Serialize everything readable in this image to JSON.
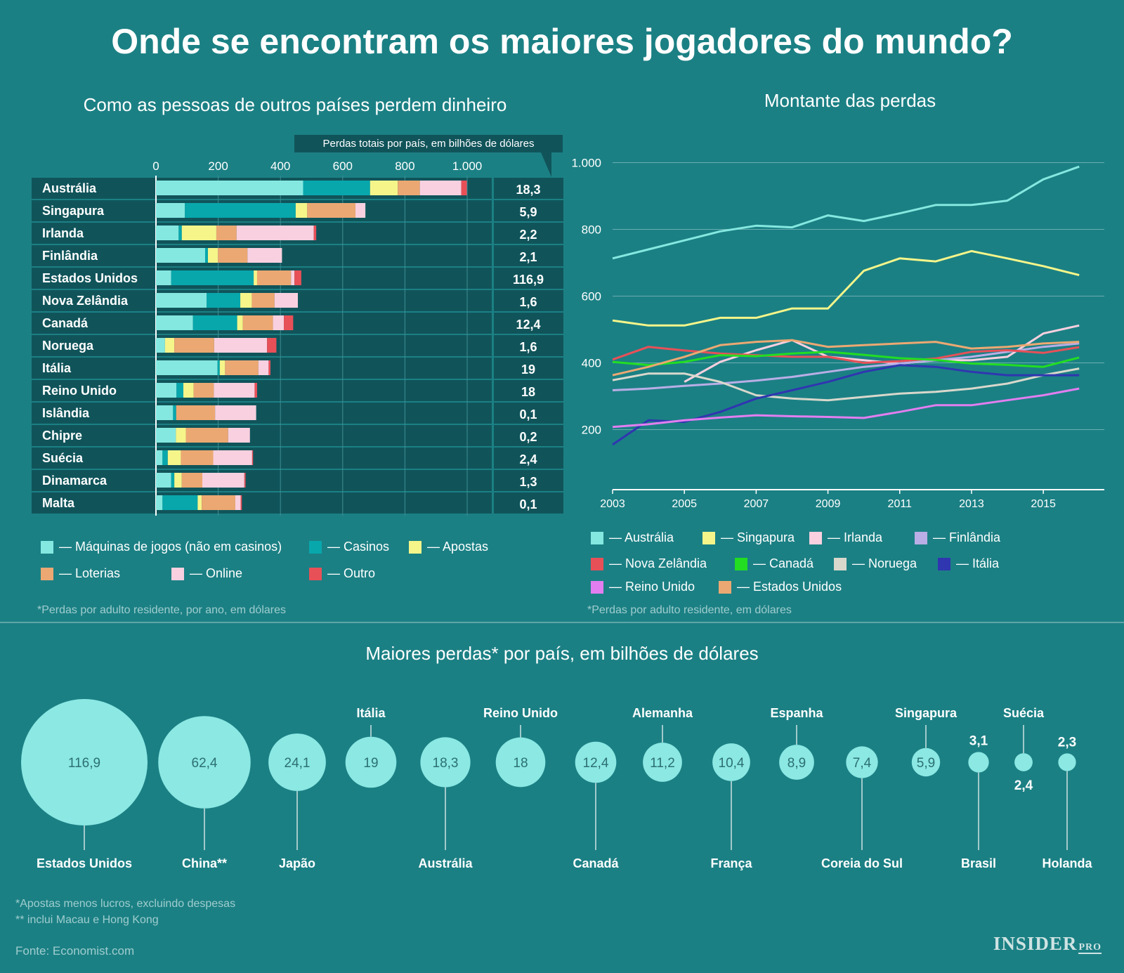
{
  "title": "Onde se encontram os maiores jogadores do mundo?",
  "colors": {
    "background": "#1b8084",
    "machines": "#85e8e0",
    "casinos": "#08a7ac",
    "bets": "#f5f58a",
    "lotteries": "#eca872",
    "online": "#f9d0df",
    "other": "#e85058",
    "bubble": "#8be8e3"
  },
  "bar_section": {
    "title": "Como as pessoas de outros países perdem dinheiro",
    "totals_note": "Perdas totais por país, em bilhões de dólares",
    "footnote": "*Perdas por adulto residente, por ano, em dólares",
    "legend": [
      {
        "label": "— Máquinas de jogos (não em casinos)",
        "color_key": "machines"
      },
      {
        "label": "— Casinos",
        "color_key": "casinos"
      },
      {
        "label": "— Apostas",
        "color_key": "bets"
      },
      {
        "label": "— Loterias",
        "color_key": "lotteries"
      },
      {
        "label": "— Online",
        "color_key": "online"
      },
      {
        "label": "— Outro",
        "color_key": "other"
      }
    ]
  },
  "line_section": {
    "title": "Montante das perdas",
    "footnote": "*Perdas por adulto residente, em dólares",
    "legend": [
      {
        "label": "— Austrália",
        "color": "#85e8e0"
      },
      {
        "label": "— Singapura",
        "color": "#f5f58a"
      },
      {
        "label": "— Irlanda",
        "color": "#f9d0df"
      },
      {
        "label": "— Finlândia",
        "color": "#b9aee6"
      },
      {
        "label": "— Nova Zelândia",
        "color": "#e85058"
      },
      {
        "label": "— Canadá",
        "color": "#22dd22"
      },
      {
        "label": "— Noruega",
        "color": "#d8d8cc"
      },
      {
        "label": "— Itália",
        "color": "#3036b0"
      },
      {
        "label": "— Reino Unido",
        "color": "#e27ef0"
      },
      {
        "label": "— Estados Unidos",
        "color": "#eca872"
      }
    ]
  },
  "bubble_section": {
    "title": "Maiores perdas* por país, em bilhões de dólares",
    "footnote1": "*Apostas menos lucros, excluindo despesas",
    "footnote2": "** inclui Macau e Hong Kong"
  },
  "source": "Fonte: Economist.com",
  "brand": {
    "main": "INSIDER",
    "sub": "PRO"
  },
  "chart_data": [
    {
      "type": "bar",
      "subtype": "stacked-horizontal",
      "title": "Como as pessoas de outros países perdem dinheiro",
      "xlim": [
        0,
        1000
      ],
      "ticks": [
        "0",
        "200",
        "400",
        "600",
        "800",
        "1.000"
      ],
      "tick_values": [
        0,
        200,
        400,
        600,
        800,
        1000
      ],
      "categories": [
        "Austrália",
        "Singapura",
        "Irlanda",
        "Finlândia",
        "Estados Unidos",
        "Nova Zelândia",
        "Canadá",
        "Noruega",
        "Itália",
        "Reino Unido",
        "Islândia",
        "Chipre",
        "Suécia",
        "Dinamarca",
        "Malta"
      ],
      "series": [
        {
          "name": "Máquinas de jogos (não em casinos)",
          "color_key": "machines",
          "values": [
            473,
            93,
            73,
            158,
            49,
            163,
            119,
            29,
            198,
            66,
            55,
            64,
            21,
            49,
            21
          ]
        },
        {
          "name": "Casinos",
          "color_key": "casinos",
          "values": [
            215,
            356,
            10,
            9,
            265,
            108,
            142,
            0,
            7,
            22,
            10,
            0,
            17,
            10,
            113
          ]
        },
        {
          "name": "Apostas",
          "color_key": "bets",
          "values": [
            89,
            37,
            111,
            32,
            11,
            37,
            18,
            30,
            17,
            33,
            0,
            32,
            42,
            24,
            13
          ]
        },
        {
          "name": "Loterias",
          "color_key": "lotteries",
          "values": [
            71,
            155,
            65,
            95,
            109,
            73,
            97,
            128,
            107,
            65,
            125,
            136,
            104,
            66,
            108
          ]
        },
        {
          "name": "Online",
          "color_key": "online",
          "values": [
            133,
            32,
            248,
            111,
            11,
            75,
            35,
            170,
            33,
            131,
            132,
            70,
            125,
            135,
            17
          ]
        },
        {
          "name": "Outro",
          "color_key": "other",
          "values": [
            18,
            0,
            8,
            0,
            22,
            0,
            30,
            30,
            6,
            8,
            0,
            0,
            3,
            4,
            4
          ]
        }
      ],
      "totals": [
        "18,3",
        "5,9",
        "2,2",
        "2,1",
        "116,9",
        "1,6",
        "12,4",
        "1,6",
        "19",
        "18",
        "0,1",
        "0,2",
        "2,4",
        "1,3",
        "0,1"
      ]
    },
    {
      "type": "line",
      "title": "Montante das perdas",
      "x": [
        2003,
        2004,
        2005,
        2006,
        2007,
        2008,
        2009,
        2010,
        2011,
        2012,
        2013,
        2014,
        2015,
        2016
      ],
      "xticks": [
        "2003",
        "2005",
        "2007",
        "2009",
        "2011",
        "2013",
        "2015"
      ],
      "xtick_values": [
        2003,
        2005,
        2007,
        2009,
        2011,
        2013,
        2015
      ],
      "xlim": [
        2003,
        2016.7
      ],
      "ylim": [
        20,
        1020
      ],
      "yticks": [
        "200",
        "400",
        "600",
        "800",
        "1.000"
      ],
      "ytick_values": [
        200,
        400,
        600,
        800,
        1000
      ],
      "series": [
        {
          "name": "Austrália",
          "color": "#85e8e0",
          "values": [
            713,
            740,
            767,
            794,
            811,
            806,
            842,
            825,
            848,
            873,
            873,
            886,
            950,
            988
          ]
        },
        {
          "name": "Singapura",
          "color": "#f5f58a",
          "values": [
            527,
            512,
            512,
            535,
            535,
            563,
            563,
            676,
            713,
            704,
            735,
            713,
            690,
            663
          ]
        },
        {
          "name": "Irlanda",
          "color": "#f9d0df",
          "values": [
            null,
            null,
            343,
            403,
            438,
            468,
            418,
            408,
            398,
            408,
            408,
            418,
            488,
            512
          ]
        },
        {
          "name": "Finlândia",
          "color": "#b9aee6",
          "values": [
            318,
            323,
            331,
            338,
            347,
            358,
            373,
            388,
            398,
            408,
            418,
            433,
            448,
            458
          ]
        },
        {
          "name": "Nova Zelândia",
          "color": "#e85058",
          "values": [
            410,
            448,
            437,
            428,
            423,
            418,
            418,
            400,
            405,
            413,
            433,
            438,
            430,
            447
          ]
        },
        {
          "name": "Canadá",
          "color": "#22dd22",
          "values": [
            403,
            393,
            403,
            423,
            420,
            428,
            433,
            424,
            414,
            409,
            398,
            394,
            388,
            416
          ]
        },
        {
          "name": "Noruega",
          "color": "#d8d8cc",
          "values": [
            348,
            368,
            368,
            343,
            303,
            293,
            288,
            298,
            308,
            313,
            323,
            338,
            363,
            383
          ]
        },
        {
          "name": "Itália",
          "color": "#3036b0",
          "values": [
            155,
            228,
            223,
            253,
            293,
            318,
            343,
            373,
            393,
            388,
            373,
            363,
            363,
            363
          ]
        },
        {
          "name": "Reino Unido",
          "color": "#e27ef0",
          "values": [
            208,
            216,
            228,
            236,
            243,
            240,
            238,
            235,
            253,
            273,
            273,
            288,
            303,
            323
          ]
        },
        {
          "name": "Estados Unidos",
          "color": "#eca872",
          "values": [
            363,
            388,
            418,
            453,
            463,
            468,
            448,
            453,
            458,
            463,
            443,
            448,
            458,
            463
          ]
        }
      ]
    },
    {
      "type": "scatter",
      "subtype": "bubble",
      "title": "Maiores perdas* por país, em bilhões de dólares",
      "items": [
        {
          "country": "Estados Unidos",
          "value": 116.9,
          "value_label": "116,9",
          "label_pos": "bottom",
          "value_inside": true
        },
        {
          "country": "China**",
          "value": 62.4,
          "value_label": "62,4",
          "label_pos": "bottom",
          "value_inside": true
        },
        {
          "country": "Japão",
          "value": 24.1,
          "value_label": "24,1",
          "label_pos": "bottom",
          "value_inside": true
        },
        {
          "country": "Itália",
          "value": 19,
          "value_label": "19",
          "label_pos": "top",
          "value_inside": true
        },
        {
          "country": "Austrália",
          "value": 18.3,
          "value_label": "18,3",
          "label_pos": "bottom",
          "value_inside": true
        },
        {
          "country": "Reino Unido",
          "value": 18,
          "value_label": "18",
          "label_pos": "top",
          "value_inside": true
        },
        {
          "country": "Canadá",
          "value": 12.4,
          "value_label": "12,4",
          "label_pos": "bottom",
          "value_inside": true
        },
        {
          "country": "Alemanha",
          "value": 11.2,
          "value_label": "11,2",
          "label_pos": "top",
          "value_inside": true
        },
        {
          "country": "França",
          "value": 10.4,
          "value_label": "10,4",
          "label_pos": "bottom",
          "value_inside": true
        },
        {
          "country": "Espanha",
          "value": 8.9,
          "value_label": "8,9",
          "label_pos": "top",
          "value_inside": true
        },
        {
          "country": "Coreia do Sul",
          "value": 7.4,
          "value_label": "7,4",
          "label_pos": "bottom",
          "value_inside": true
        },
        {
          "country": "Singapura",
          "value": 5.9,
          "value_label": "5,9",
          "label_pos": "top",
          "value_inside": true
        },
        {
          "country": "Brasil",
          "value": 3.1,
          "value_label": "3,1",
          "label_pos": "bottom",
          "value_inside": false
        },
        {
          "country": "Suécia",
          "value": 2.4,
          "value_label": "2,4",
          "label_pos": "top",
          "value_inside": false
        },
        {
          "country": "Holanda",
          "value": 2.3,
          "value_label": "2,3",
          "label_pos": "bottom",
          "value_inside": false
        }
      ]
    }
  ]
}
